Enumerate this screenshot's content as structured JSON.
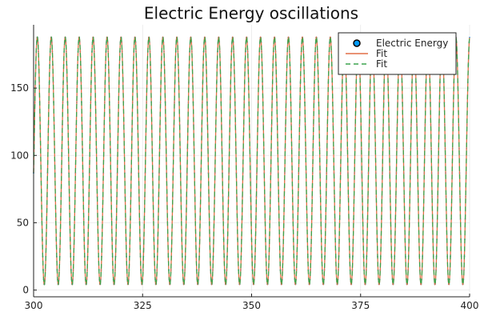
{
  "chart_data": {
    "type": "line",
    "title": "Electric Energy oscillations",
    "xlabel": "",
    "ylabel": "",
    "xlim": [
      300,
      400
    ],
    "ylim": [
      -5,
      197
    ],
    "x_ticks": [
      300,
      325,
      350,
      375,
      400
    ],
    "x_tick_labels": [
      "300",
      "325",
      "350",
      "375",
      "400"
    ],
    "y_ticks": [
      0,
      50,
      100,
      150
    ],
    "y_tick_labels": [
      "0",
      "50",
      "100",
      "150"
    ],
    "grid": true,
    "legend_position": "top-right",
    "model": {
      "form": "offset + amplitude*cos(2*pi*(x - x0)/period)",
      "offset": 96,
      "amplitude": 92,
      "period": 3.2,
      "x0": 300.85
    },
    "series": [
      {
        "name": "Electric Energy",
        "style": "points",
        "color": "#009AFA"
      },
      {
        "name": "Fit",
        "style": "solid",
        "color": "#E26F46"
      },
      {
        "name": "Fit",
        "style": "dashed",
        "color": "#3DA44D"
      }
    ]
  }
}
